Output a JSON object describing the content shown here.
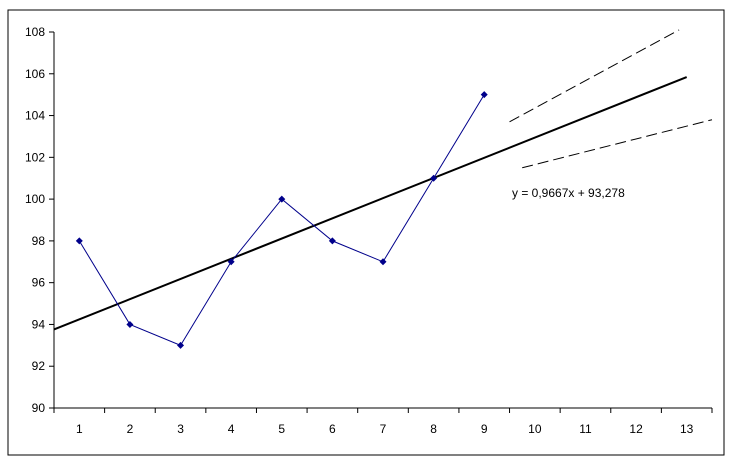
{
  "chart_data": {
    "type": "line",
    "title": "",
    "xlabel": "",
    "ylabel": "",
    "x_ticks": [
      1,
      2,
      3,
      4,
      5,
      6,
      7,
      8,
      9,
      10,
      11,
      12,
      13
    ],
    "y_ticks": [
      90,
      92,
      94,
      96,
      98,
      100,
      102,
      104,
      106,
      108
    ],
    "xlim": [
      0.5,
      13.5
    ],
    "ylim": [
      90,
      108
    ],
    "grid": false,
    "legend": "none",
    "series": [
      {
        "x": [
          1,
          2,
          3,
          4,
          5,
          6,
          7,
          8,
          9
        ],
        "values": [
          98,
          94,
          93,
          97,
          100,
          98,
          97,
          101,
          105
        ],
        "color": "#00008b",
        "marker": "diamond"
      }
    ],
    "trendline": {
      "slope": 0.9667,
      "intercept": 93.278,
      "x_range": [
        0.5,
        13
      ],
      "color": "#000000",
      "equation_label": "y = 0,9667x + 93,278"
    },
    "forecast_bounds": {
      "upper": {
        "x": [
          9.5,
          12.85
        ],
        "y": [
          103.7,
          108.1
        ]
      },
      "lower": {
        "x": [
          9.75,
          13.5
        ],
        "y": [
          101.5,
          103.8
        ]
      },
      "color": "#000000",
      "style": "dashed"
    }
  }
}
